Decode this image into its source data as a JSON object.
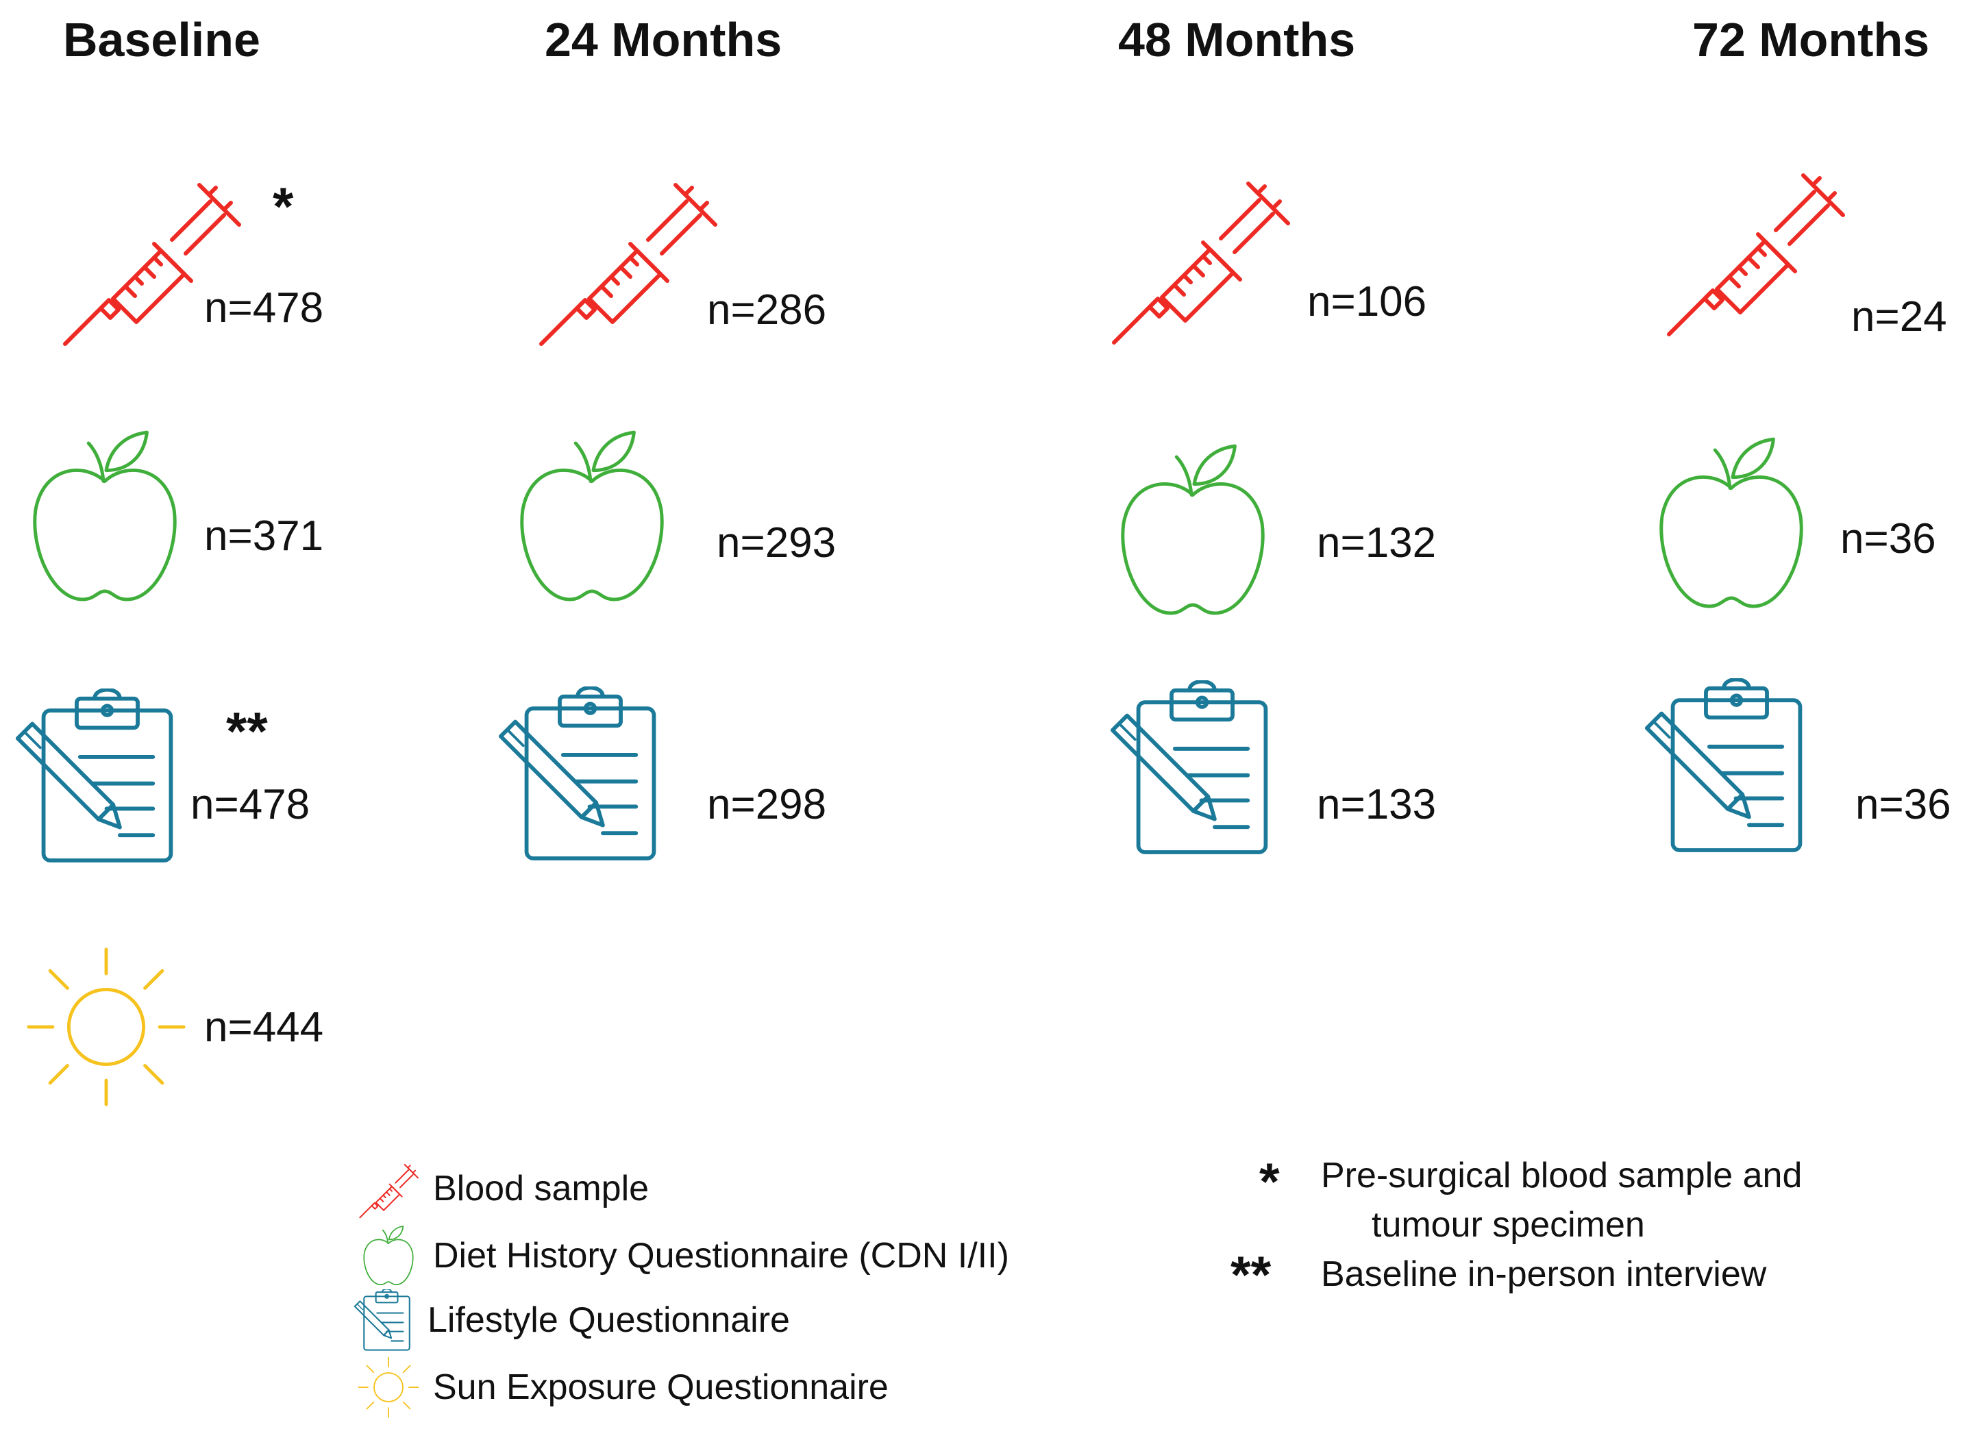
{
  "columns": [
    {
      "title": "Baseline"
    },
    {
      "title": "24 Months"
    },
    {
      "title": "48 Months"
    },
    {
      "title": "72 Months"
    }
  ],
  "counts": {
    "blood": [
      "n=478",
      "n=286",
      "n=106",
      "n=24"
    ],
    "diet": [
      "n=371",
      "n=293",
      "n=132",
      "n=36"
    ],
    "lifestyle": [
      "n=478",
      "n=298",
      "n=133",
      "n=36"
    ],
    "sun": [
      "n=444"
    ]
  },
  "markers": {
    "blood_baseline": "*",
    "lifestyle_baseline": "**"
  },
  "legend": {
    "blood": "Blood sample",
    "diet": "Diet History Questionnaire (CDN I/II)",
    "lifestyle": "Lifestyle Questionnaire",
    "sun": "Sun Exposure Questionnaire"
  },
  "notes": [
    {
      "mark": "*",
      "line1": "Pre-surgical blood sample and",
      "line2": "tumour specimen"
    },
    {
      "mark": "**",
      "line1": "Baseline in-person interview"
    }
  ],
  "colors": {
    "blood": "#ee2a24",
    "diet": "#3fae3a",
    "lifestyle": "#1b7a99",
    "sun": "#f6c21e"
  },
  "icons": {
    "blood": "syringe-icon",
    "diet": "apple-icon",
    "lifestyle": "clipboard-pencil-icon",
    "sun": "sun-icon"
  }
}
